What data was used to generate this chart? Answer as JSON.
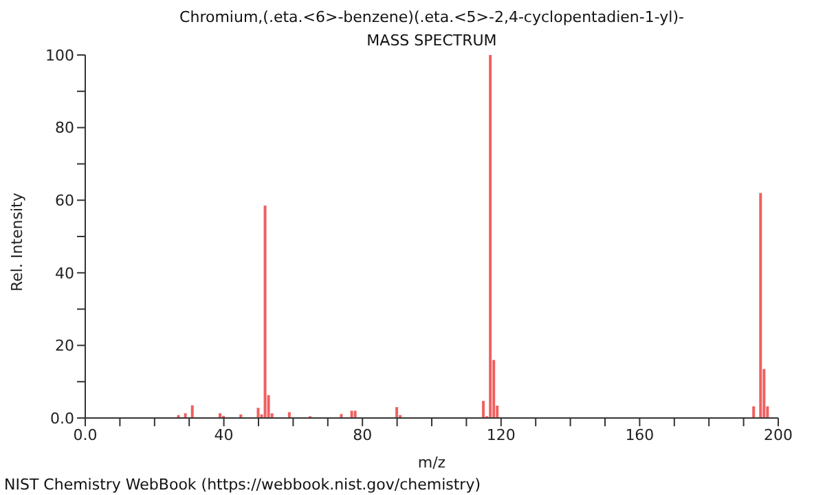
{
  "chart_data": {
    "type": "bar",
    "title": "Chromium,(.eta.<6>-benzene)(.eta.<5>-2,4-cyclopentadien-1-yl)-",
    "subtitle": "MASS SPECTRUM",
    "xlabel": "m/z",
    "ylabel": "Rel. Intensity",
    "x": [
      27,
      28,
      29,
      31,
      39,
      40,
      45,
      50,
      51,
      52,
      53,
      54,
      59,
      65,
      74,
      77,
      78,
      90,
      91,
      115,
      116,
      117,
      118,
      119,
      193,
      194,
      195,
      196,
      197
    ],
    "values": [
      0.8,
      null,
      1.3,
      3.5,
      1.3,
      0.6,
      1.0,
      2.8,
      1.0,
      58.5,
      6.3,
      1.3,
      1.6,
      0.5,
      1.1,
      2.0,
      2.0,
      3.0,
      0.8,
      4.7,
      0.5,
      100,
      16,
      3.4,
      3.2,
      null,
      62,
      13.5,
      3.2
    ],
    "color": "#f06060",
    "xlim": [
      0,
      200
    ],
    "xticks": [
      {
        "value": 0,
        "label": "0.0"
      },
      {
        "value": 10,
        "label": null
      },
      {
        "value": 20,
        "label": null
      },
      {
        "value": 30,
        "label": null
      },
      40,
      {
        "value": 50,
        "label": null
      },
      {
        "value": 60,
        "label": null
      },
      {
        "value": 70,
        "label": null
      },
      80,
      {
        "value": 90,
        "label": null
      },
      {
        "value": 100,
        "label": null
      },
      {
        "value": 110,
        "label": null
      },
      120,
      {
        "value": 130,
        "label": null
      },
      {
        "value": 140,
        "label": null
      },
      {
        "value": 150,
        "label": null
      },
      160,
      {
        "value": 170,
        "label": null
      },
      {
        "value": 180,
        "label": null
      },
      {
        "value": 190,
        "label": null
      },
      200
    ],
    "ylim": [
      0,
      100
    ],
    "yticks": [
      {
        "value": 0,
        "label": "0.0"
      },
      {
        "value": 10,
        "label": null
      },
      20,
      {
        "value": 30,
        "label": null
      },
      40,
      {
        "value": 50,
        "label": null
      },
      60,
      {
        "value": 70,
        "label": null
      },
      80,
      {
        "value": 90,
        "label": null
      },
      100
    ],
    "grid": false,
    "legend": false,
    "annotations": [
      "NIST Chemistry WebBook (https://webbook.nist.gov/chemistry)"
    ]
  }
}
